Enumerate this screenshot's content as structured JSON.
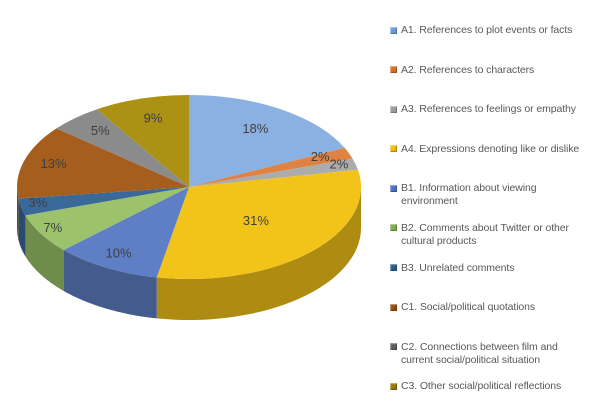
{
  "page": {
    "background": "#FFFFFF"
  },
  "chart_data": {
    "type": "pie",
    "is_3d": true,
    "title": "",
    "legend_position": "right",
    "label_color": "#3F3F3F",
    "legend_text_color": "#595959",
    "slices": [
      {
        "id": "A1",
        "label": "A1. References to plot events or facts",
        "value": 18,
        "data_label": "18%",
        "color": "#6D9CD8",
        "top_color": "#8AB1E2"
      },
      {
        "id": "A2",
        "label": "A2. References to characters",
        "value": 2,
        "data_label": "2%",
        "color": "#D2712A",
        "top_color": "#DF8344"
      },
      {
        "id": "A3",
        "label": "A3. References to feelings or empathy",
        "value": 2,
        "data_label": "2%",
        "color": "#9E9E9E",
        "top_color": "#ACACAC"
      },
      {
        "id": "A4",
        "label": "A4. Expressions denoting like or dislike",
        "value": 31,
        "data_label": "31%",
        "color": "#EFBD0E",
        "top_color": "#F2C318"
      },
      {
        "id": "B1",
        "label": "B1. Information about viewing\nenvironment",
        "value": 10,
        "data_label": "10%",
        "color": "#4A71C1",
        "top_color": "#5E7EC5"
      },
      {
        "id": "B2",
        "label": "B2. Comments about Twitter or other\ncultural products",
        "value": 7,
        "data_label": "7%",
        "color": "#81AB4C",
        "top_color": "#9CC36B"
      },
      {
        "id": "B3",
        "label": "B3. Unrelated comments",
        "value": 3,
        "data_label": "3%",
        "color": "#2F5C8F",
        "top_color": "#3A6898"
      },
      {
        "id": "C1",
        "label": "C1. Social/political quotations",
        "value": 13,
        "data_label": "13%",
        "color": "#94500F",
        "top_color": "#A55E1E"
      },
      {
        "id": "C2",
        "label": "C2. Connections between film and\ncurrent social/political situation",
        "value": 5,
        "data_label": "5%",
        "color": "#606060",
        "top_color": "#8B8B8B"
      },
      {
        "id": "C3",
        "label": "C3. Other social/political reflections",
        "value": 9,
        "data_label": "9%",
        "color": "#937D0D",
        "top_color": "#AB9215"
      }
    ]
  }
}
